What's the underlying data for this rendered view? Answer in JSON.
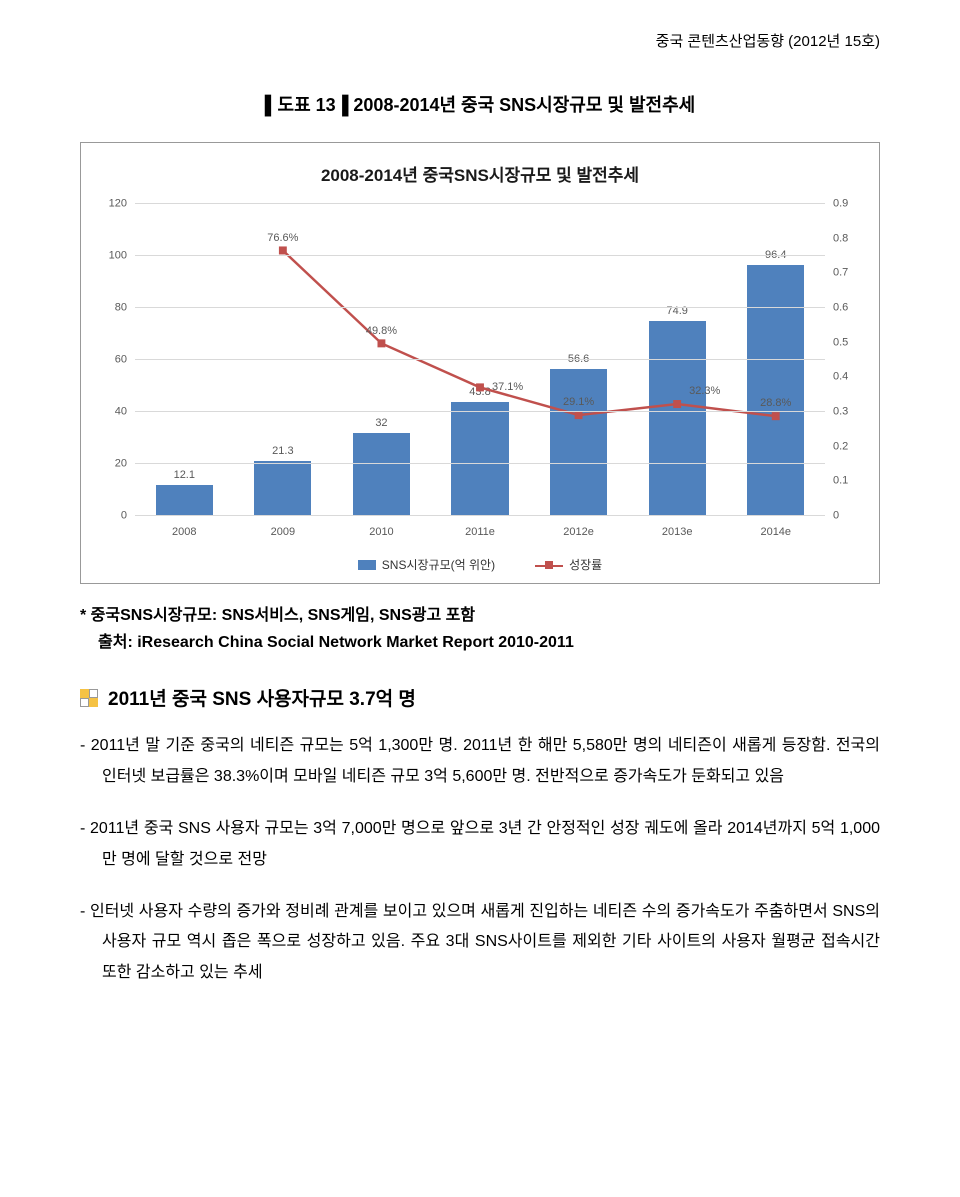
{
  "header": {
    "text": "중국 콘텐츠산업동향 (2012년 15호)"
  },
  "figure": {
    "caption": "▌도표 13▐ 2008-2014년 중국 SNS시장규모 및 발전추세",
    "chart": {
      "type": "bar+line",
      "title": "2008-2014년 중국SNS시장규모 및 발전추세",
      "categories": [
        "2008",
        "2009",
        "2010",
        "2011e",
        "2012e",
        "2013e",
        "2014e"
      ],
      "bar_values": [
        12.1,
        21.3,
        32,
        43.8,
        56.6,
        74.9,
        96.4
      ],
      "bar_color": "#4f81bd",
      "line_values": [
        null,
        0.766,
        0.498,
        0.371,
        0.291,
        0.323,
        0.288
      ],
      "line_labels": [
        "",
        "76.6%",
        "49.8%",
        "37.1%",
        "29.1%",
        "32.3%",
        "28.8%"
      ],
      "line_color": "#c0504d",
      "marker_shape": "square",
      "y_left": {
        "min": 0,
        "max": 120,
        "step": 20,
        "label_color": "#595959"
      },
      "y_right": {
        "min": 0,
        "max": 0.9,
        "step": 0.1,
        "label_color": "#595959"
      },
      "grid_color": "#d9d9d9",
      "background_color": "#ffffff",
      "legend": {
        "bar_label": "SNS시장규모(억 위안)",
        "line_label": "성장률"
      }
    },
    "source": {
      "line1": "* 중국SNS시장규모: SNS서비스, SNS게임, SNS광고 포함",
      "line2": "출처: iResearch China Social Network Market Report 2010-2011"
    }
  },
  "section": {
    "title": "2011년 중국 SNS 사용자규모 3.7억 명"
  },
  "paragraphs": {
    "p1": "- 2011년 말 기준 중국의 네티즌 규모는 5억 1,300만 명. 2011년 한 해만 5,580만 명의 네티즌이 새롭게 등장함. 전국의 인터넷 보급률은 38.3%이며 모바일 네티즌 규모 3억 5,600만 명. 전반적으로 증가속도가 둔화되고 있음",
    "p2": "- 2011년 중국 SNS 사용자 규모는 3억 7,000만 명으로 앞으로 3년 간 안정적인 성장 궤도에 올라 2014년까지 5억 1,000만 명에 달할 것으로 전망",
    "p3": "- 인터넷 사용자 수량의 증가와 정비례 관계를 보이고 있으며 새롭게 진입하는 네티즌 수의 증가속도가 주춤하면서 SNS의 사용자 규모 역시 좁은 폭으로 성장하고 있음. 주요 3대 SNS사이트를 제외한 기타 사이트의 사용자 월평균 접속시간 또한 감소하고 있는 추세"
  }
}
